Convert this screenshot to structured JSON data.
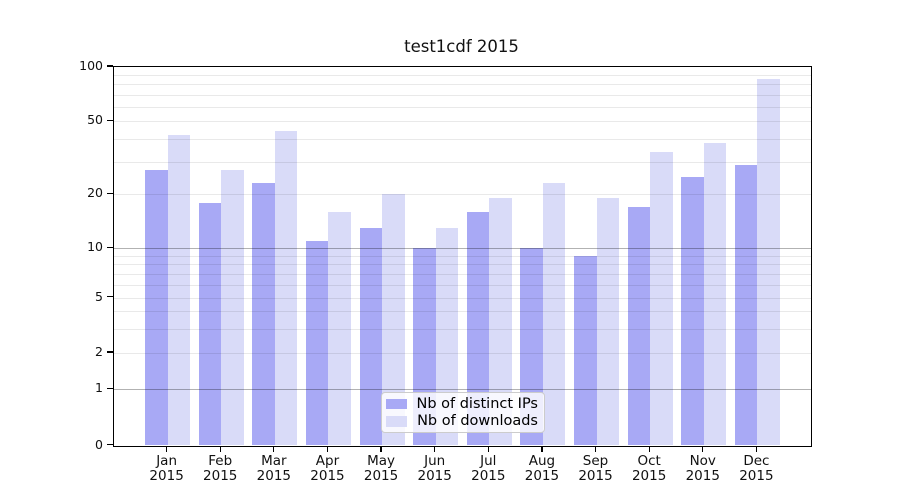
{
  "chart_data": {
    "type": "bar",
    "title": "test1cdf 2015",
    "categories": [
      "Jan",
      "Feb",
      "Mar",
      "Apr",
      "May",
      "Jun",
      "Jul",
      "Aug",
      "Sep",
      "Oct",
      "Nov",
      "Dec"
    ],
    "x_tick_second_line": "2015",
    "series": [
      {
        "name": "Nb of distinct IPs",
        "color": "#a8a9f5",
        "values": [
          27,
          18,
          23,
          11,
          13,
          10,
          16,
          10,
          9,
          17,
          25,
          29
        ]
      },
      {
        "name": "Nb of downloads",
        "color": "#d9dbf8",
        "values": [
          42,
          27,
          44,
          16,
          20,
          13,
          19,
          23,
          19,
          34,
          38,
          86
        ]
      }
    ],
    "y_ticks": [
      0,
      1,
      2,
      5,
      10,
      20,
      50,
      100
    ],
    "ylim": [
      0,
      100
    ],
    "y_scale": "symlog",
    "grid": true,
    "legend_position": "lower center"
  },
  "colors": {
    "bar_distinct_ips": "#a8a9f5",
    "bar_downloads": "#d9dbf8",
    "grid_minor": "#e9e9e9",
    "grid_major": "#b3b3b3",
    "axis": "#000000",
    "legend_border": "#cccccc",
    "background": "#ffffff"
  }
}
